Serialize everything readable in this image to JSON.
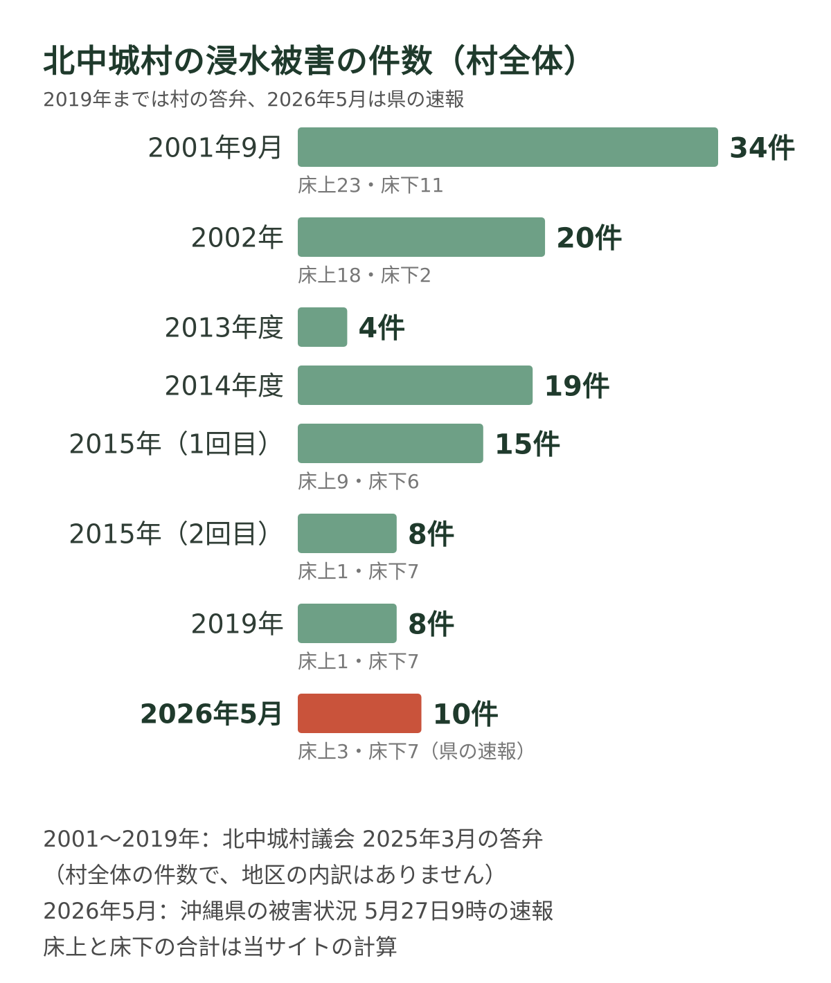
{
  "title": "北中城村の浸水被害の件数（村全体）",
  "subtitle": "2019年までは村の答弁、2026年5月は県の速報",
  "colors": {
    "bar_default": "#6ea086",
    "bar_highlight": "#c9533b",
    "label_text": "#2f3d35",
    "value_text": "#1f3a2c",
    "breakdown_text": "#777777"
  },
  "chart_data": {
    "type": "bar",
    "orientation": "horizontal",
    "unit": "件",
    "categories": [
      "2001年9月",
      "2002年",
      "2013年度",
      "2014年度",
      "2015年（1回目）",
      "2015年（2回目）",
      "2019年",
      "2026年5月"
    ],
    "values": [
      34,
      20,
      4,
      19,
      15,
      8,
      8,
      10
    ],
    "value_labels": [
      "34件",
      "20件",
      "4件",
      "19件",
      "15件",
      "8件",
      "8件",
      "10件"
    ],
    "breakdown": [
      "床上23・床下11",
      "床上18・床下2",
      "",
      "",
      "床上9・床下6",
      "床上1・床下7",
      "床上1・床下7",
      "床上3・床下7（県の速報）"
    ],
    "highlight": [
      false,
      false,
      false,
      false,
      false,
      false,
      false,
      true
    ]
  },
  "notes": [
    "2001〜2019年：北中城村議会 2025年3月の答弁",
    "（村全体の件数で、地区の内訳はありません）",
    "2026年5月：沖縄県の被害状況 5月27日9時の速報",
    "床上と床下の合計は当サイトの計算"
  ]
}
